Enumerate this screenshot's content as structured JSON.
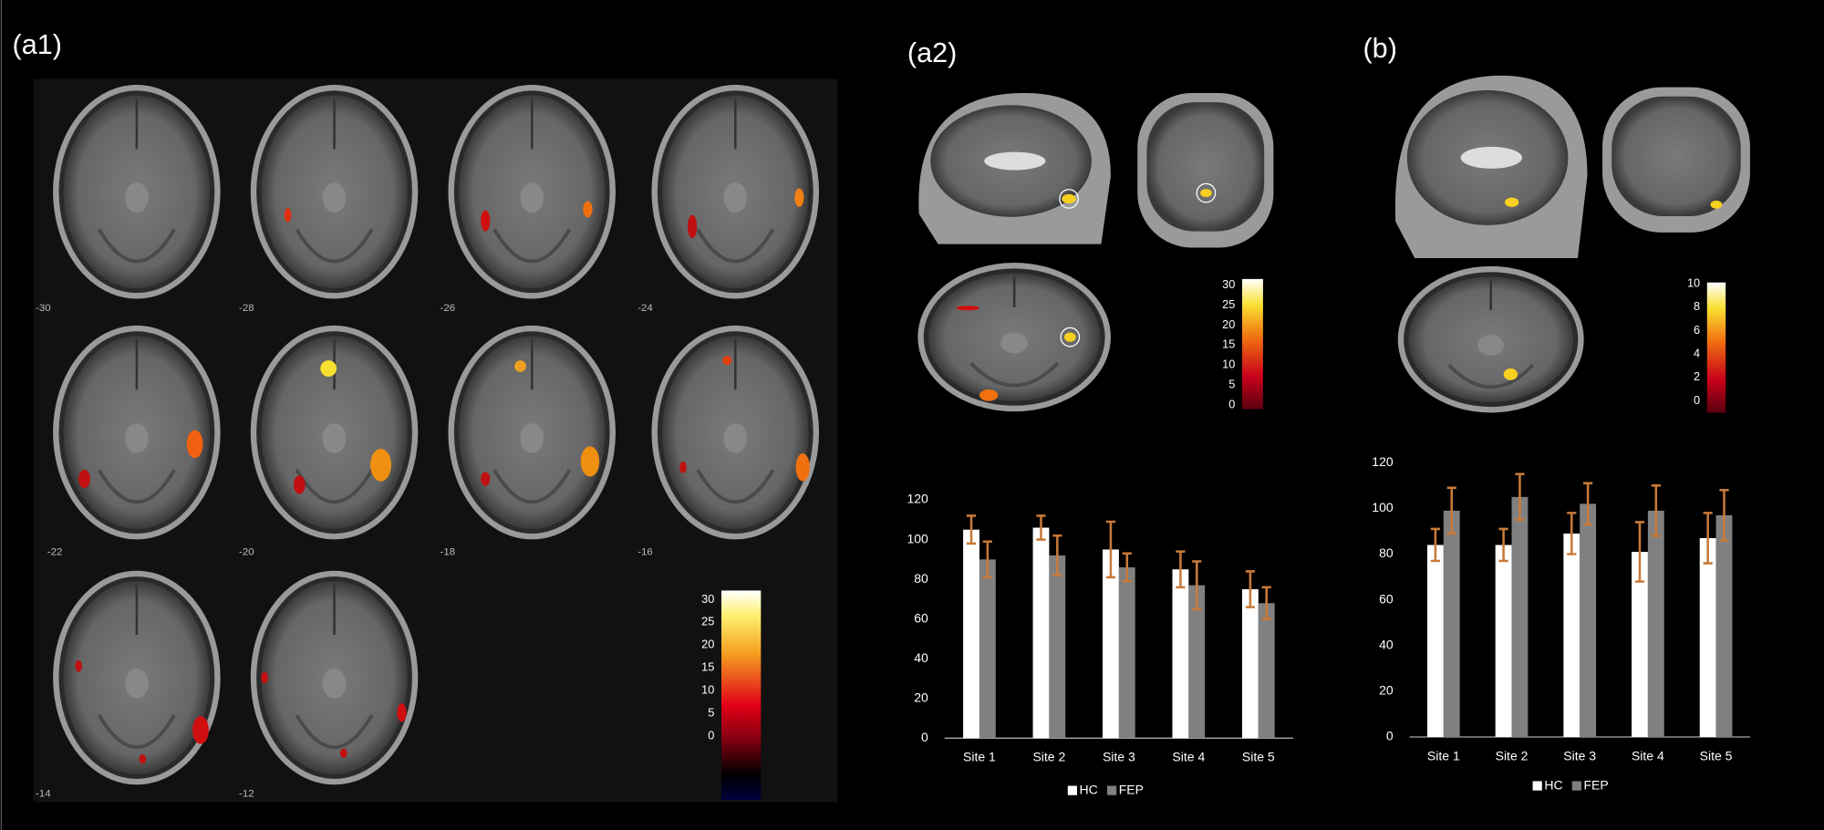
{
  "panels": [
    "(a1)",
    "(a2)",
    "(b)"
  ],
  "slices": [
    -30,
    -28,
    -26,
    -24,
    -22,
    -20,
    -18,
    -16,
    -14,
    -12
  ],
  "colorbars": [
    {
      "lim": [
        -14,
        32
      ],
      "ticks": [
        0,
        5,
        10,
        15,
        20,
        25,
        30
      ]
    },
    {
      "lim": [
        -1,
        31.5
      ],
      "ticks": [
        0,
        5,
        10,
        15,
        20,
        25,
        30
      ]
    },
    {
      "lim": [
        -1,
        10.1
      ],
      "ticks": [
        0,
        2,
        4,
        6,
        8,
        10
      ]
    }
  ],
  "chart_data": [
    {
      "type": "bar",
      "categories": [
        "Site 1",
        "Site 2",
        "Site 3",
        "Site 4",
        "Site 5"
      ],
      "series": [
        {
          "name": "HC",
          "color": "#ffffff",
          "values": [
            105,
            106,
            95,
            85,
            75
          ],
          "errors": [
            7,
            6,
            14,
            9,
            9
          ]
        },
        {
          "name": "FEP",
          "color": "#808080",
          "values": [
            90,
            92,
            86,
            77,
            68
          ],
          "errors": [
            9,
            10,
            7,
            12,
            8
          ]
        }
      ],
      "error_color": "#c87a3a",
      "ylim": [
        0,
        120
      ],
      "yticks": [
        0,
        20,
        40,
        60,
        80,
        100,
        120
      ],
      "legend": "bottom"
    },
    {
      "type": "bar",
      "categories": [
        "Site 1",
        "Site 2",
        "Site 3",
        "Site 4",
        "Site 5"
      ],
      "series": [
        {
          "name": "HC",
          "color": "#ffffff",
          "values": [
            84,
            84,
            89,
            81,
            87
          ],
          "errors": [
            7,
            7,
            9,
            13,
            11
          ]
        },
        {
          "name": "FEP",
          "color": "#808080",
          "values": [
            99,
            105,
            102,
            99,
            97
          ],
          "errors": [
            10,
            10,
            9,
            11,
            11
          ]
        }
      ],
      "error_color": "#c87a3a",
      "ylim": [
        0,
        120
      ],
      "yticks": [
        0,
        20,
        40,
        60,
        80,
        100,
        120
      ],
      "legend": "bottom"
    }
  ]
}
